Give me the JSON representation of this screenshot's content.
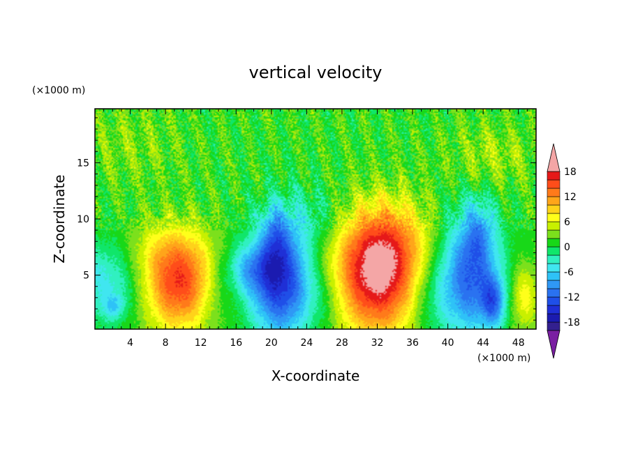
{
  "chart_data": {
    "type": "heatmap",
    "title": "vertical velocity",
    "xlabel": "X-coordinate",
    "ylabel": "Z-coordinate",
    "x_units": "(×1000 m)",
    "y_units": "(×1000 m)",
    "xlim": [
      0,
      50
    ],
    "ylim": [
      0.2,
      19.8
    ],
    "x_ticks": [
      4,
      8,
      12,
      16,
      20,
      24,
      28,
      32,
      36,
      40,
      44,
      48
    ],
    "y_ticks": [
      5,
      10,
      15
    ],
    "grid": false,
    "legend_placement": "right",
    "colorbar": {
      "tick_values": [
        18,
        12,
        6,
        0,
        -6,
        -12,
        -18
      ],
      "level_min": -20,
      "level_max": 20,
      "level_step": 2,
      "colors": [
        "#7a1fa2",
        "#33208f",
        "#1b1bb0",
        "#1f2fd6",
        "#1f4fe8",
        "#2a72f0",
        "#2f98f5",
        "#2ec2f7",
        "#40e6f0",
        "#30f0c0",
        "#10e66a",
        "#18d818",
        "#7ce01c",
        "#c8f000",
        "#ffff1a",
        "#ffd21a",
        "#ffa51a",
        "#ff7a1a",
        "#ff4d1a",
        "#e61919",
        "#f4a6a6"
      ]
    },
    "features": [
      {
        "x": 9.5,
        "z": 4.2,
        "peak": 14
      },
      {
        "x": 32,
        "z": 5.0,
        "peak": 18
      },
      {
        "x": 21,
        "z": 4.5,
        "peak": -16
      },
      {
        "x": 43,
        "z": 5.0,
        "peak": -14
      },
      {
        "x": 45.2,
        "z": 2.6,
        "peak": -16
      },
      {
        "x": 48.5,
        "z": 3.0,
        "peak": 6
      }
    ]
  }
}
